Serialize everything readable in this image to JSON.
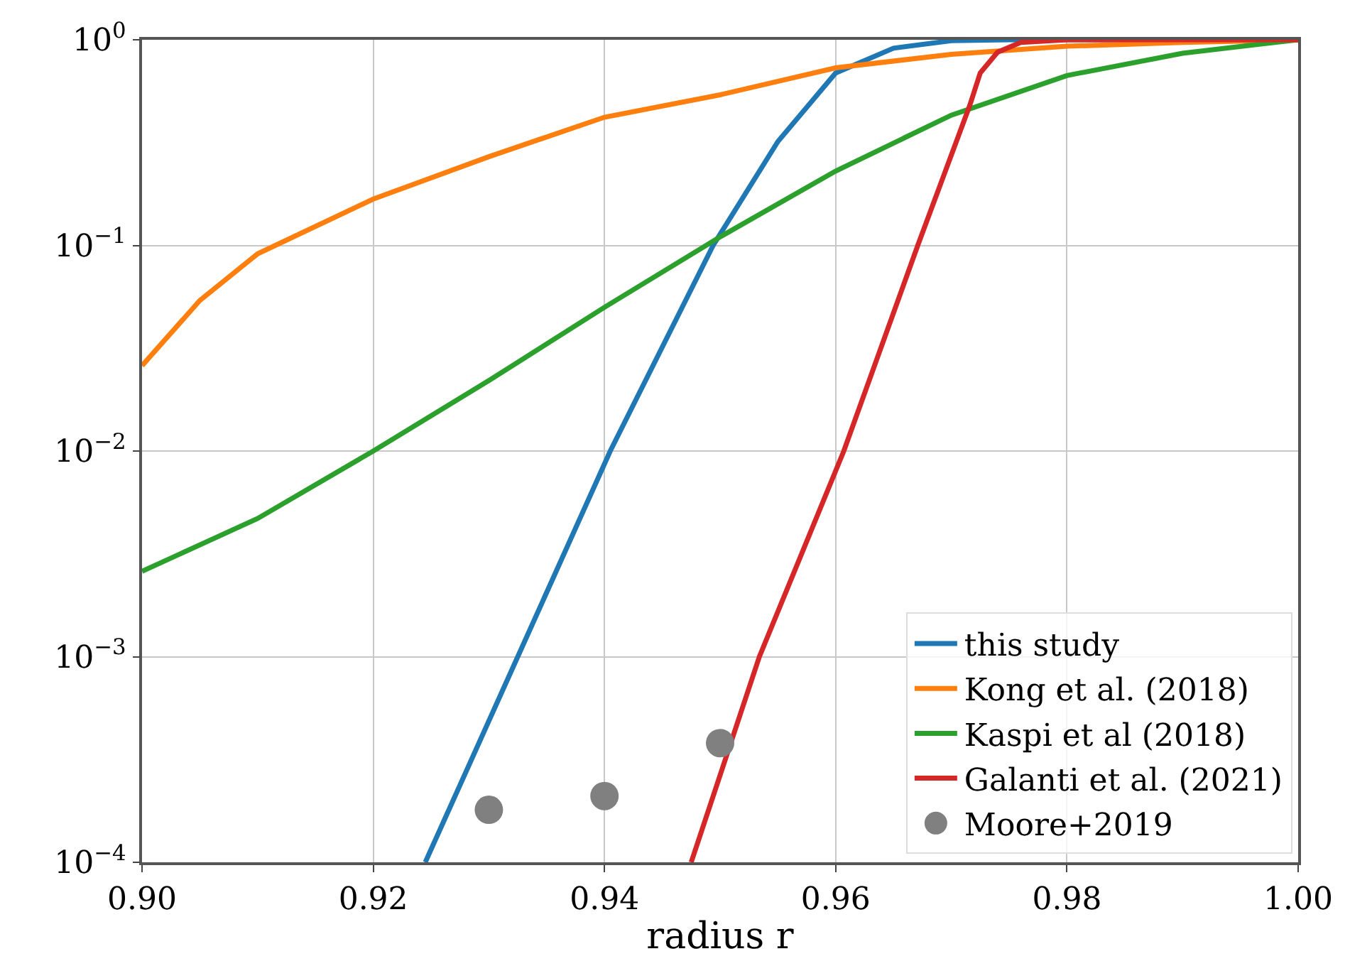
{
  "chart_data": {
    "type": "line",
    "xlabel": "radius r",
    "log": "y",
    "grid": true,
    "legend": "bottom right",
    "line_style": "solid",
    "xlim": [
      0.9,
      1.0
    ],
    "xticks": [
      {
        "value": 0.9,
        "label": "0.90"
      },
      0.92,
      0.94,
      0.96,
      0.98,
      {
        "value": 1.0,
        "label": "1.00"
      }
    ],
    "ylim": [
      0.0001,
      1
    ],
    "yticks": [
      {
        "value": 0.0001,
        "label": "10$^{−4}$"
      },
      {
        "value": 0.001,
        "label": "10$^{−3}$"
      },
      {
        "value": 0.01,
        "label": "10$^{−2}$"
      },
      {
        "value": 0.1,
        "label": "10$^{−1}$"
      },
      {
        "value": 1,
        "label": "10$^{0}$"
      }
    ],
    "series": [
      {
        "name": "this study",
        "color": "#1f77b4",
        "marker": "none",
        "x": [
          0.9245,
          0.9325,
          0.9405,
          0.9494,
          0.955,
          0.96,
          0.965,
          0.97,
          0.975,
          0.98,
          1.0
        ],
        "values": [
          0.0001,
          0.001,
          0.01,
          0.1,
          0.32,
          0.69,
          0.91,
          0.99,
          1,
          1,
          1
        ]
      },
      {
        "name": "Kong et al. (2018)",
        "color": "#ff7f0e",
        "marker": "none",
        "x": [
          0.9,
          0.905,
          0.91,
          0.92,
          0.93,
          0.94,
          0.95,
          0.96,
          0.97,
          0.98,
          0.99,
          1.0
        ],
        "values": [
          0.026,
          0.054,
          0.091,
          0.168,
          0.27,
          0.42,
          0.54,
          0.73,
          0.85,
          0.93,
          0.97,
          1
        ]
      },
      {
        "name": "Kaspi et al (2018)",
        "color": "#2ca02c",
        "marker": "none",
        "x": [
          0.9,
          0.91,
          0.92,
          0.93,
          0.94,
          0.95,
          0.96,
          0.97,
          0.98,
          0.99,
          1.0
        ],
        "values": [
          0.0026,
          0.0047,
          0.01,
          0.022,
          0.05,
          0.11,
          0.23,
          0.43,
          0.67,
          0.86,
          1
        ]
      },
      {
        "name": "Galanti et al. (2021)",
        "color": "#d62728",
        "marker": "none",
        "x": [
          0.9475,
          0.9534,
          0.9607,
          0.9671,
          0.9716,
          0.9725,
          0.974,
          0.976,
          0.98,
          1.0
        ],
        "values": [
          0.0001,
          0.001,
          0.01,
          0.1,
          0.48,
          0.69,
          0.87,
          0.97,
          1,
          1
        ]
      },
      {
        "name": "Moore+2019",
        "type": "scatter",
        "color": "#808080",
        "marker": "circle",
        "x": [
          0.93,
          0.94,
          0.95
        ],
        "values": [
          0.00018,
          0.00021,
          0.00038
        ]
      }
    ]
  }
}
